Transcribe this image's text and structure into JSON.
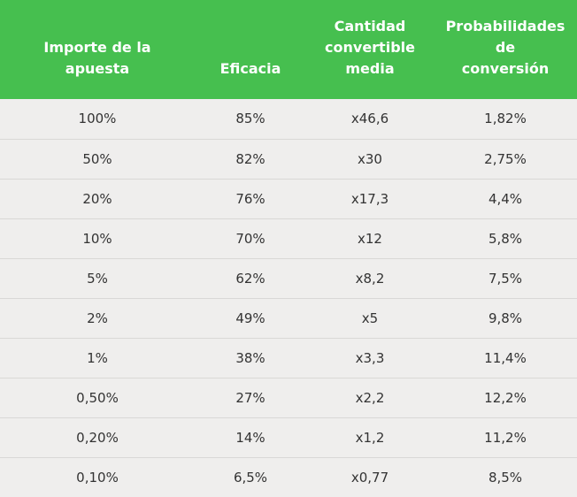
{
  "table": {
    "headers": [
      [
        "Importe de la",
        "apuesta"
      ],
      [
        "Eficacia"
      ],
      [
        "Cantidad",
        "convertible",
        "media"
      ],
      [
        "Probabilidades",
        "de",
        "conversión"
      ]
    ],
    "rows": [
      [
        "100%",
        "85%",
        "x46,6",
        "1,82%"
      ],
      [
        "50%",
        "82%",
        "x30",
        "2,75%"
      ],
      [
        "20%",
        "76%",
        "x17,3",
        "4,4%"
      ],
      [
        "10%",
        "70%",
        "x12",
        "5,8%"
      ],
      [
        "5%",
        "62%",
        "x8,2",
        "7,5%"
      ],
      [
        "2%",
        "49%",
        "x5",
        "9,8%"
      ],
      [
        "1%",
        "38%",
        "x3,3",
        "11,4%"
      ],
      [
        "0,50%",
        "27%",
        "x2,2",
        "12,2%"
      ],
      [
        "0,20%",
        "14%",
        "x1,2",
        "11,2%"
      ],
      [
        "0,10%",
        "6,5%",
        "x0,77",
        "8,5%"
      ]
    ]
  },
  "colors": {
    "header_background": "#46bf4f",
    "header_text": "#ffffff",
    "row_background": "#efeeed",
    "row_divider": "#d9d8d6",
    "cell_text": "#333333"
  }
}
